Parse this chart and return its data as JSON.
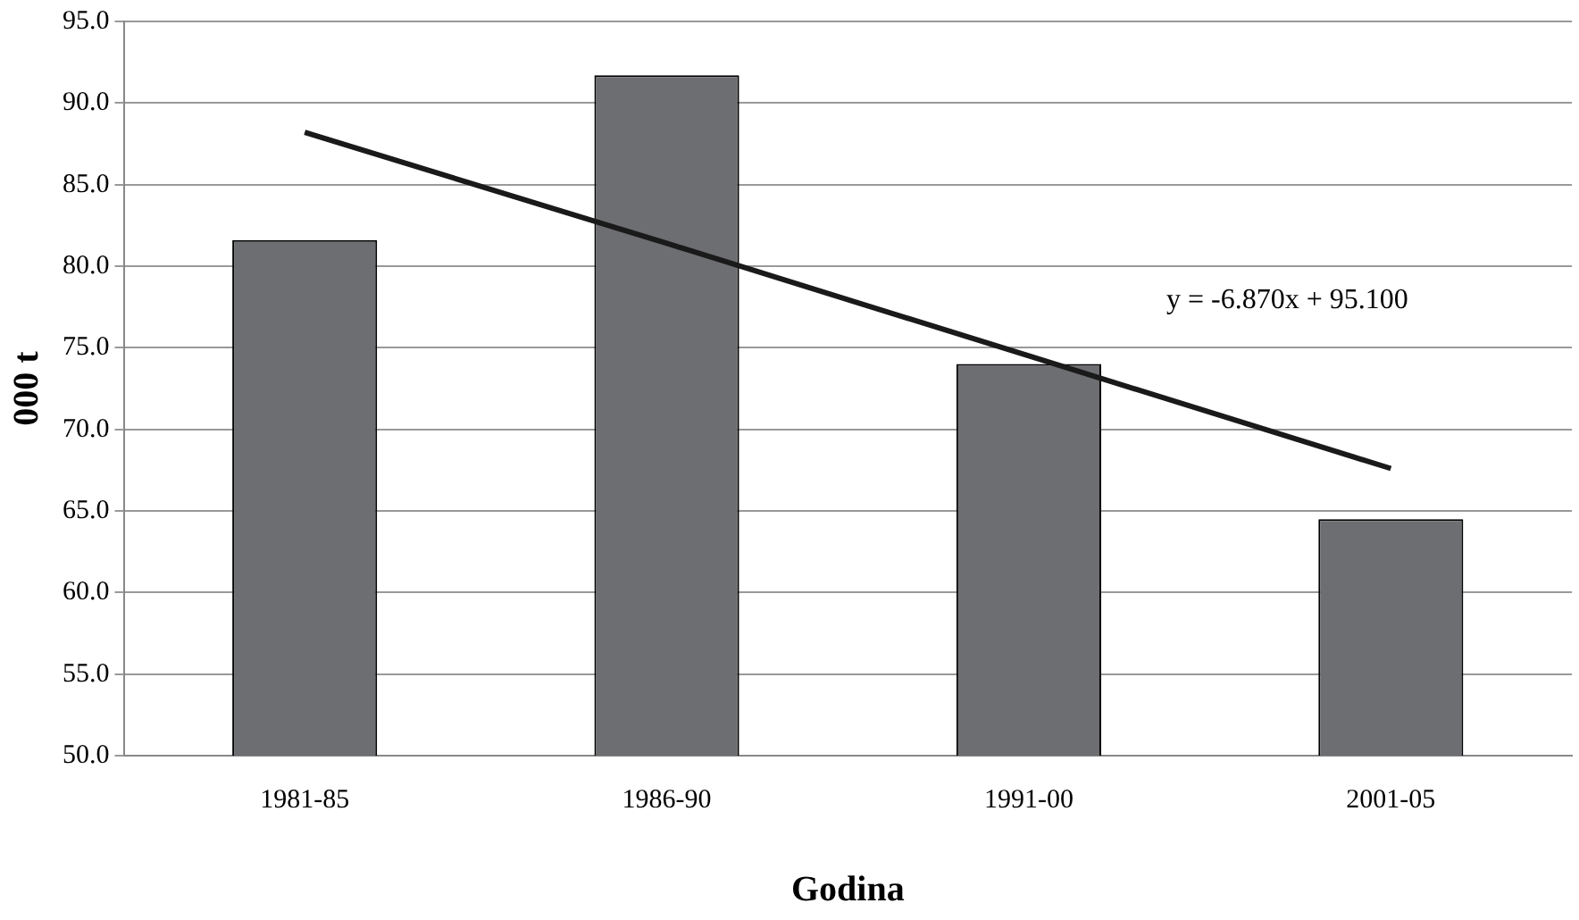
{
  "chart_data": {
    "type": "bar",
    "xlabel": "Godina",
    "ylabel": "000 t",
    "categories": [
      "1981-85",
      "1986-90",
      "1991-00",
      "2001-05"
    ],
    "series": [
      {
        "color": "#6d6e71",
        "values": [
          81.6,
          91.7,
          74.0,
          64.5
        ]
      },
      {
        "type": "line",
        "color": "#1a1a1a",
        "values": [
          88.2,
          81.4,
          74.5,
          67.6
        ]
      }
    ],
    "ylim": [
      50,
      95
    ],
    "yticks": [
      {
        "value": 50,
        "label": "50.0"
      },
      {
        "value": 55,
        "label": "55.0"
      },
      {
        "value": 60,
        "label": "60.0"
      },
      {
        "value": 65,
        "label": "65.0"
      },
      {
        "value": 70,
        "label": "70.0"
      },
      {
        "value": 75,
        "label": "75.0"
      },
      {
        "value": 80,
        "label": "80.0"
      },
      {
        "value": 85,
        "label": "85.0"
      },
      {
        "value": 90,
        "label": "90.0"
      },
      {
        "value": 95,
        "label": "95.0"
      }
    ],
    "grid": "y",
    "legend": false,
    "marker": "none",
    "line_style": "solid",
    "annotations": [
      "y = -6.870x + 95.100"
    ]
  }
}
